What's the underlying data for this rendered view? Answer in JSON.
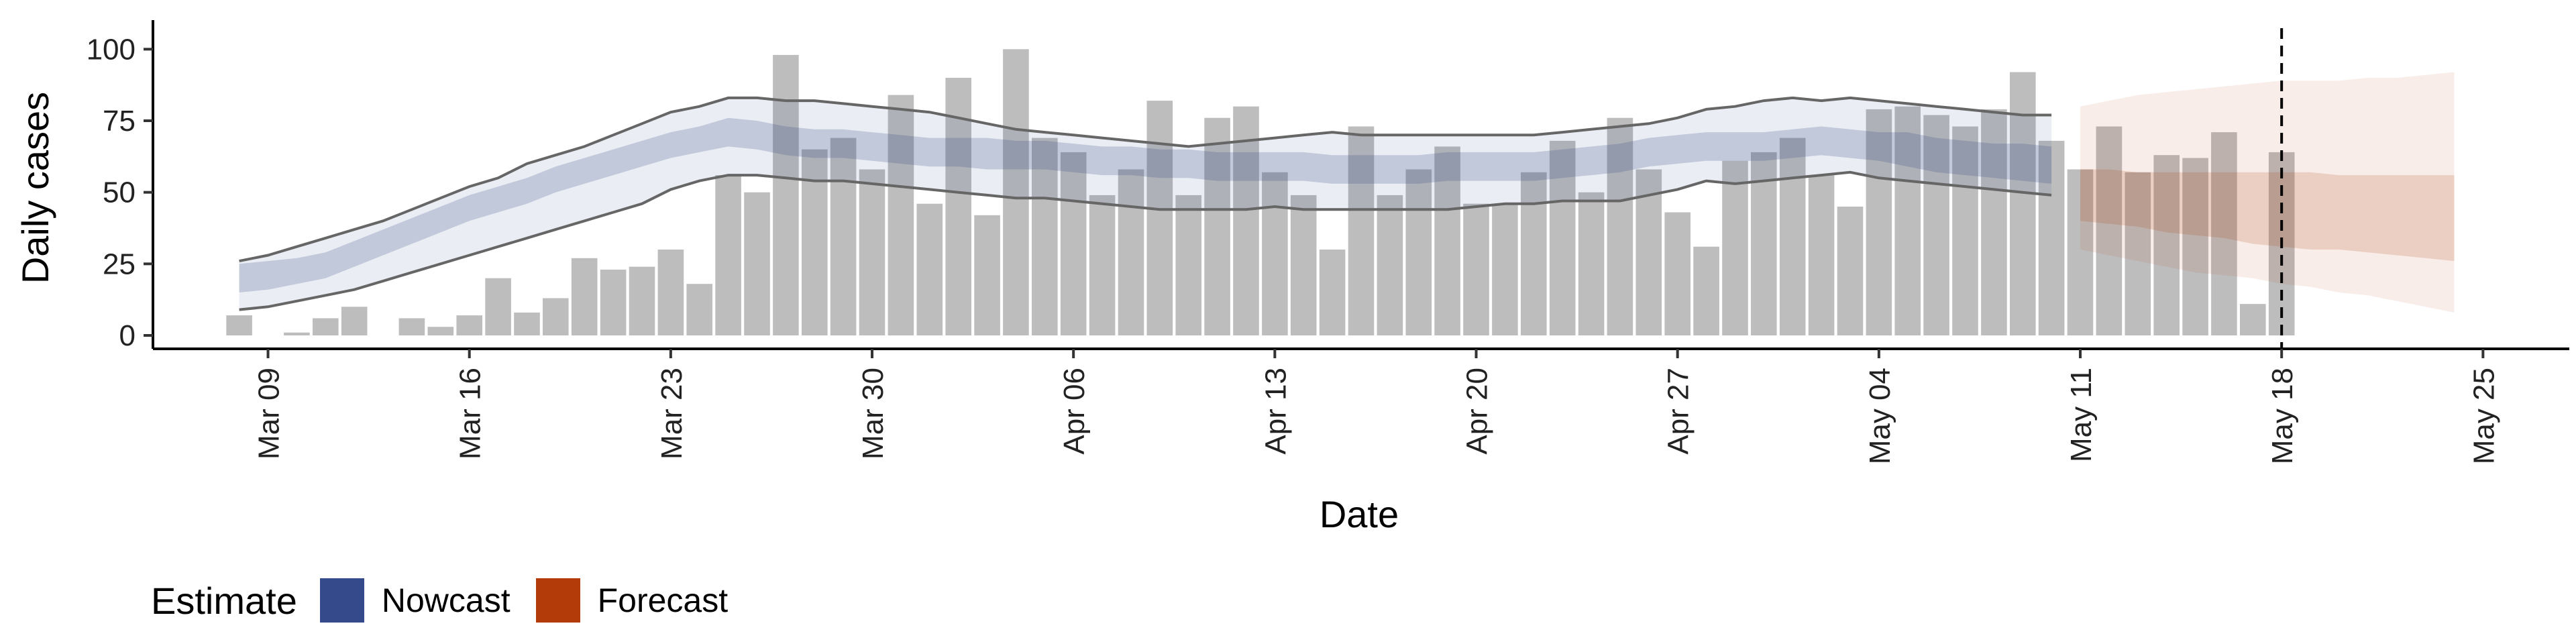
{
  "chart_data": {
    "type": "bar",
    "x_type": "date",
    "ylabel": "Daily cases",
    "xlabel": "Date",
    "ylim": [
      0,
      105
    ],
    "xlim": [
      "2020-03-05",
      "2020-05-28"
    ],
    "y_ticks": [
      0,
      25,
      50,
      75,
      100
    ],
    "x_ticks": [
      {
        "date": "2020-03-09",
        "label": "Mar 09"
      },
      {
        "date": "2020-03-16",
        "label": "Mar 16"
      },
      {
        "date": "2020-03-23",
        "label": "Mar 23"
      },
      {
        "date": "2020-03-30",
        "label": "Mar 30"
      },
      {
        "date": "2020-04-06",
        "label": "Apr 06"
      },
      {
        "date": "2020-04-13",
        "label": "Apr 13"
      },
      {
        "date": "2020-04-20",
        "label": "Apr 20"
      },
      {
        "date": "2020-04-27",
        "label": "Apr 27"
      },
      {
        "date": "2020-05-04",
        "label": "May 04"
      },
      {
        "date": "2020-05-11",
        "label": "May 11"
      },
      {
        "date": "2020-05-18",
        "label": "May 18"
      },
      {
        "date": "2020-05-25",
        "label": "May 25"
      }
    ],
    "grid": false,
    "vline": "2020-05-18",
    "bar_color": "#bdbdbd",
    "bar_start": "2020-03-08",
    "bars": [
      7,
      null,
      1,
      6,
      10,
      null,
      6,
      3,
      7,
      20,
      8,
      13,
      27,
      23,
      24,
      30,
      18,
      56,
      50,
      98,
      65,
      69,
      58,
      84,
      46,
      90,
      42,
      100,
      69,
      64,
      49,
      58,
      82,
      49,
      76,
      80,
      57,
      49,
      30,
      73,
      49,
      58,
      66,
      46,
      46,
      57,
      68,
      50,
      76,
      58,
      43,
      31,
      61,
      64,
      69,
      56,
      45,
      79,
      80,
      77,
      73,
      79,
      92,
      68,
      58,
      73,
      57,
      63,
      62,
      71,
      11,
      64
    ],
    "nowcast": {
      "color": "#354a8a",
      "start": "2020-03-08",
      "mid": [
        20,
        21,
        22,
        24,
        28,
        32,
        36,
        40,
        44,
        47,
        50,
        54,
        57,
        60,
        63,
        66,
        68,
        71,
        70,
        68,
        67,
        67,
        66,
        65,
        64,
        64,
        64,
        63,
        63,
        62,
        61,
        61,
        60,
        60,
        59,
        59,
        59,
        59,
        58,
        58,
        58,
        58,
        59,
        59,
        59,
        59,
        60,
        61,
        62,
        64,
        65,
        66,
        66,
        66,
        67,
        68,
        67,
        66,
        65,
        63,
        62,
        61,
        61,
        60
      ],
      "inner_low": [
        15,
        16,
        18,
        20,
        24,
        28,
        32,
        36,
        40,
        43,
        46,
        50,
        53,
        56,
        59,
        62,
        64,
        66,
        65,
        63,
        62,
        62,
        61,
        60,
        59,
        59,
        58,
        58,
        58,
        57,
        56,
        56,
        55,
        55,
        54,
        54,
        54,
        54,
        53,
        53,
        53,
        53,
        54,
        54,
        54,
        54,
        55,
        56,
        57,
        59,
        60,
        61,
        61,
        61,
        62,
        63,
        62,
        61,
        59,
        57,
        56,
        55,
        54,
        53
      ],
      "inner_high": [
        25,
        26,
        27,
        29,
        33,
        37,
        41,
        45,
        49,
        52,
        55,
        59,
        62,
        65,
        68,
        71,
        73,
        76,
        75,
        73,
        72,
        72,
        71,
        70,
        69,
        69,
        69,
        68,
        68,
        67,
        66,
        66,
        65,
        65,
        64,
        64,
        64,
        64,
        63,
        63,
        63,
        63,
        64,
        64,
        64,
        64,
        65,
        66,
        67,
        69,
        70,
        71,
        71,
        71,
        72,
        73,
        72,
        71,
        71,
        69,
        68,
        67,
        67,
        66
      ],
      "outer_low": [
        9,
        10,
        12,
        14,
        16,
        19,
        22,
        25,
        28,
        31,
        34,
        37,
        40,
        43,
        46,
        51,
        54,
        56,
        56,
        55,
        54,
        54,
        53,
        52,
        51,
        50,
        49,
        48,
        48,
        47,
        46,
        45,
        44,
        44,
        44,
        44,
        45,
        44,
        44,
        44,
        44,
        44,
        44,
        45,
        46,
        46,
        47,
        47,
        47,
        49,
        51,
        54,
        53,
        54,
        55,
        56,
        57,
        55,
        54,
        53,
        52,
        51,
        50,
        49
      ],
      "outer_high": [
        26,
        28,
        31,
        34,
        37,
        40,
        44,
        48,
        52,
        55,
        60,
        63,
        66,
        70,
        74,
        78,
        80,
        83,
        83,
        82,
        82,
        81,
        80,
        79,
        78,
        76,
        74,
        72,
        71,
        70,
        69,
        68,
        67,
        66,
        67,
        68,
        69,
        70,
        71,
        70,
        70,
        70,
        70,
        70,
        70,
        70,
        71,
        72,
        73,
        74,
        76,
        79,
        80,
        82,
        83,
        82,
        83,
        82,
        81,
        80,
        79,
        78,
        77,
        77
      ]
    },
    "forecast": {
      "color": "#b33b0a",
      "start": "2020-05-11",
      "mid": [
        50,
        49,
        49,
        48,
        48,
        47,
        47,
        46,
        46,
        45,
        45,
        45,
        44,
        44
      ],
      "inner_low": [
        40,
        39,
        38,
        36,
        35,
        34,
        32,
        31,
        30,
        30,
        29,
        28,
        27,
        26
      ],
      "inner_high": [
        58,
        58,
        57,
        57,
        57,
        57,
        57,
        57,
        57,
        56,
        56,
        56,
        56,
        56
      ],
      "outer_low": [
        30,
        28,
        26,
        24,
        22,
        21,
        20,
        18,
        17,
        15,
        14,
        12,
        10,
        8
      ],
      "outer_high": [
        80,
        82,
        84,
        85,
        86,
        87,
        88,
        89,
        89,
        89,
        90,
        90,
        91,
        92
      ]
    }
  },
  "legend": {
    "title": "Estimate",
    "items": [
      {
        "label": "Nowcast",
        "color": "#354a8a"
      },
      {
        "label": "Forecast",
        "color": "#b33b0a"
      }
    ]
  }
}
